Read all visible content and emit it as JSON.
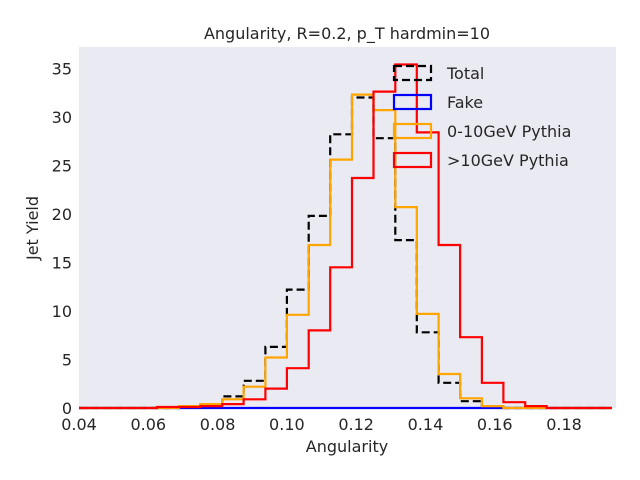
{
  "chart_data": {
    "type": "line",
    "drawstyle": "steps",
    "title": "Angularity, R=0.2, p_T hardmin=10",
    "xlabel": "Angularity",
    "ylabel": "Jet Yield",
    "xlim": [
      0.04,
      0.195
    ],
    "ylim": [
      0,
      37.2
    ],
    "xticks": [
      0.04,
      0.06,
      0.08,
      0.1,
      0.12,
      0.14,
      0.16,
      0.18
    ],
    "xtick_labels": [
      "0.04",
      "0.06",
      "0.08",
      "0.10",
      "0.12",
      "0.14",
      "0.16",
      "0.18"
    ],
    "yticks": [
      0,
      5,
      10,
      15,
      20,
      25,
      30,
      35
    ],
    "ytick_labels": [
      "0",
      "5",
      "10",
      "15",
      "20",
      "25",
      "30",
      "35"
    ],
    "grid": false,
    "background": "#eaeaf2",
    "legend_position": "top-right",
    "bin_edges": [
      0.0375,
      0.0438,
      0.05,
      0.0563,
      0.0625,
      0.0688,
      0.075,
      0.0813,
      0.0875,
      0.0938,
      0.1,
      0.1063,
      0.1125,
      0.1188,
      0.125,
      0.1313,
      0.1375,
      0.1438,
      0.15,
      0.1563,
      0.1625,
      0.1688,
      0.175,
      0.1813,
      0.1875,
      0.1938
    ],
    "series": [
      {
        "name": "Total",
        "color": "#000000",
        "dash": "dashed",
        "values": [
          0,
          0,
          0,
          0,
          0,
          0.1,
          0.3,
          1.2,
          2.8,
          6.3,
          12.2,
          19.8,
          28.2,
          32.0,
          27.8,
          17.3,
          7.8,
          2.6,
          0.7,
          0.1,
          0,
          0,
          0,
          0,
          0
        ]
      },
      {
        "name": "Fake",
        "color": "#0000ff",
        "dash": "solid",
        "values": [
          0,
          0,
          0,
          0,
          0,
          0,
          0,
          0,
          0,
          0,
          0,
          0,
          0,
          0,
          0,
          0,
          0,
          0,
          0,
          0,
          0,
          0,
          0,
          0,
          0
        ]
      },
      {
        "name": "0-10GeV Pythia",
        "color": "#ffa500",
        "dash": "solid",
        "values": [
          0,
          0,
          0,
          0,
          0,
          0.2,
          0.4,
          0.9,
          2.2,
          5.2,
          9.6,
          16.8,
          25.6,
          32.3,
          30.7,
          20.7,
          9.7,
          3.5,
          1.0,
          0.2,
          0,
          0,
          0,
          0,
          0
        ]
      },
      {
        "name": ">10GeV Pythia",
        "color": "#ff0000",
        "dash": "solid",
        "values": [
          0,
          0,
          0,
          0,
          0.1,
          0.1,
          0.2,
          0.4,
          0.9,
          2.0,
          4.1,
          8.0,
          14.5,
          23.7,
          32.6,
          35.4,
          28.4,
          16.8,
          7.3,
          2.6,
          0.6,
          0.2,
          0,
          0,
          0
        ]
      }
    ]
  }
}
